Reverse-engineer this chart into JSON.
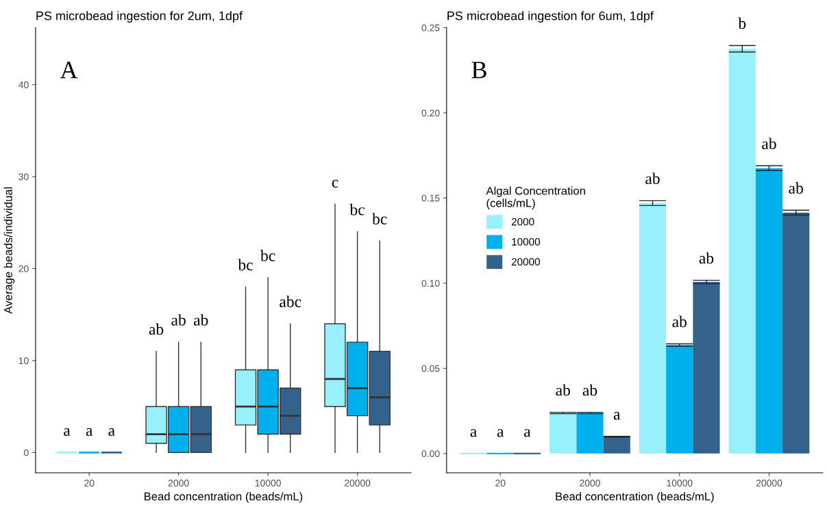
{
  "chart_data": [
    {
      "type": "box",
      "title": "PS microbead ingestion for 2um, 1dpf",
      "xlabel": "Bead concentration (beads/mL)",
      "ylabel": "Average beads/individual",
      "categories": [
        "20",
        "2000",
        "10000",
        "20000"
      ],
      "series": [
        {
          "color": "#98f0fc",
          "boxes": [
            {
              "low": 0,
              "q1": 0,
              "median": 0,
              "q3": 0,
              "high": 0
            },
            {
              "low": 0,
              "q1": 1,
              "median": 2,
              "q3": 5,
              "high": 11
            },
            {
              "low": 0,
              "q1": 3,
              "median": 5,
              "q3": 9,
              "high": 18
            },
            {
              "low": 0,
              "q1": 5,
              "median": 8,
              "q3": 14,
              "high": 27
            }
          ]
        },
        {
          "color": "#00b0ec",
          "boxes": [
            {
              "low": 0,
              "q1": 0,
              "median": 0,
              "q3": 0,
              "high": 0
            },
            {
              "low": 0,
              "q1": 0,
              "median": 2,
              "q3": 5,
              "high": 12
            },
            {
              "low": 0,
              "q1": 2,
              "median": 5,
              "q3": 9,
              "high": 19
            },
            {
              "low": 0,
              "q1": 4,
              "median": 7,
              "q3": 12,
              "high": 24
            }
          ]
        },
        {
          "color": "#35628a",
          "boxes": [
            {
              "low": 0,
              "q1": 0,
              "median": 0,
              "q3": 0,
              "high": 0
            },
            {
              "low": 0,
              "q1": 0,
              "median": 2,
              "q3": 5,
              "high": 12
            },
            {
              "low": 0,
              "q1": 2,
              "median": 4,
              "q3": 7,
              "high": 14
            },
            {
              "low": 0,
              "q1": 3,
              "median": 6,
              "q3": 11,
              "high": 23
            }
          ]
        }
      ],
      "ylim": [
        -2.2,
        46.2
      ],
      "yticks": [
        0,
        10,
        20,
        30,
        40
      ],
      "grid": false,
      "annotations": [
        "A",
        "a",
        "a",
        "a",
        "ab",
        "ab",
        "ab",
        "bc",
        "bc",
        "abc",
        "c",
        "bc",
        "bc"
      ]
    },
    {
      "type": "bar",
      "title": "PS microbead ingestion for 6um, 1dpf",
      "xlabel": "Bead concentration (beads/mL)",
      "legend_title": "Algal Concentration\n(cells/mL)",
      "categories": [
        "20",
        "2000",
        "10000",
        "20000"
      ],
      "series": [
        {
          "name": "2000",
          "color": "#98f0fc",
          "values": [
            0,
            0.0238,
            0.147,
            0.2376
          ],
          "errors": [
            null,
            0.0004,
            0.0014,
            0.0019
          ]
        },
        {
          "name": "10000",
          "color": "#00b0ec",
          "values": [
            0,
            0.0238,
            0.0637,
            0.1675
          ],
          "errors": [
            null,
            0.0004,
            0.0007,
            0.0014
          ]
        },
        {
          "name": "20000",
          "color": "#35628a",
          "values": [
            0,
            0.0099,
            0.1007,
            0.1414
          ],
          "errors": [
            null,
            0.0002,
            0.001,
            0.0014
          ]
        }
      ],
      "ylim": [
        -0.0113,
        0.25
      ],
      "yticks": [
        {
          "value": 0,
          "label": "0.00"
        },
        0.05,
        {
          "value": 0.1,
          "label": "0.10"
        },
        0.15,
        {
          "value": 0.2,
          "label": "0.20"
        },
        0.25
      ],
      "grid": false,
      "legend": "center left",
      "annotations": [
        "B",
        "a",
        "a",
        "a",
        "ab",
        "ab",
        "a",
        "ab",
        "ab",
        "ab",
        "b",
        "ab",
        "ab"
      ]
    }
  ]
}
